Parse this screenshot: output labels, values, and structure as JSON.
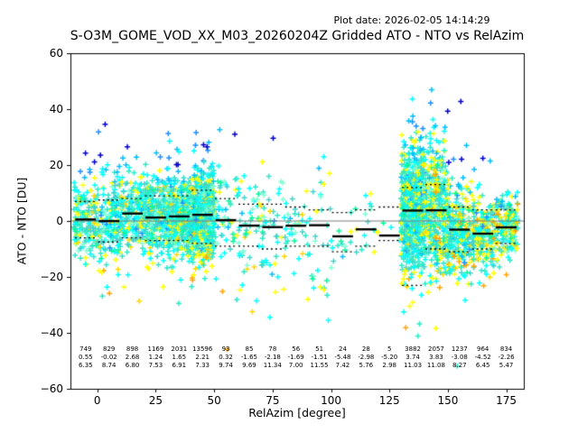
{
  "header": {
    "plot_date": "Plot date: 2026-02-05 14:14:29"
  },
  "chart_data": {
    "type": "scatter",
    "title": "S-O3M_GOME_VOD_XX_M03_20260204Z Gridded ATO - NTO vs RelAzim",
    "xlabel": "RelAzim [degree]",
    "ylabel": "ATO - NTO [DU]",
    "xlim": [
      -11.5,
      182.5
    ],
    "ylim": [
      -60,
      60
    ],
    "xticks": [
      0,
      25,
      50,
      75,
      100,
      125,
      150,
      175
    ],
    "yticks": [
      -60,
      -40,
      -20,
      0,
      20,
      40,
      60
    ],
    "grid": false,
    "legend": "none",
    "marker": "plus",
    "zero_line": 0,
    "bin_width_degrees": 10,
    "bins": {
      "centers": [
        -5,
        5,
        15,
        25,
        35,
        45,
        55,
        65,
        75,
        85,
        95,
        105,
        115,
        125,
        135,
        145,
        155,
        165,
        175
      ],
      "counts": [
        749,
        829,
        898,
        1169,
        2031,
        13596,
        93,
        85,
        78,
        56,
        51,
        24,
        28,
        5,
        3882,
        2057,
        1237,
        964,
        834
      ],
      "means": [
        0.55,
        -0.02,
        2.68,
        1.24,
        1.65,
        2.21,
        0.32,
        -1.65,
        -2.18,
        -1.69,
        -1.51,
        -5.48,
        -2.98,
        -5.2,
        3.74,
        3.83,
        -3.08,
        -4.52,
        -2.26
      ],
      "stds": [
        6.35,
        8.74,
        6.8,
        7.53,
        6.91,
        7.33,
        9.74,
        9.69,
        11.34,
        7.0,
        11.55,
        7.42,
        5.76,
        2.98,
        11.03,
        11.08,
        8.27,
        6.45,
        5.47
      ]
    },
    "dotted_upper": [
      7,
      7.5,
      8,
      9,
      9,
      11,
      8,
      6,
      6,
      5,
      4,
      3,
      4,
      5,
      12,
      13,
      5,
      4,
      4
    ],
    "dotted_lower": [
      -6,
      -7.5,
      -6,
      -7,
      -7,
      -8,
      -9,
      -9,
      -10,
      -9,
      -9,
      -11,
      -9,
      -7,
      -23,
      -10,
      -11,
      -10,
      -8
    ],
    "palette": {
      "turquoise": "#2ee8c8",
      "mediumturquoise": "#48d1cc",
      "cyan": "#00ffff",
      "aquamarine": "#7fffd4",
      "springgreen": "#00fa9a",
      "yellow": "#ffff00",
      "gold": "#ffd700",
      "orange": "#ffa500",
      "deepskyblue": "#00bfff",
      "dodgerblue": "#1e90ff",
      "mediumblue": "#0000cd"
    },
    "axis_color": "#000000",
    "zero_line_color": "#7f7f7f"
  }
}
